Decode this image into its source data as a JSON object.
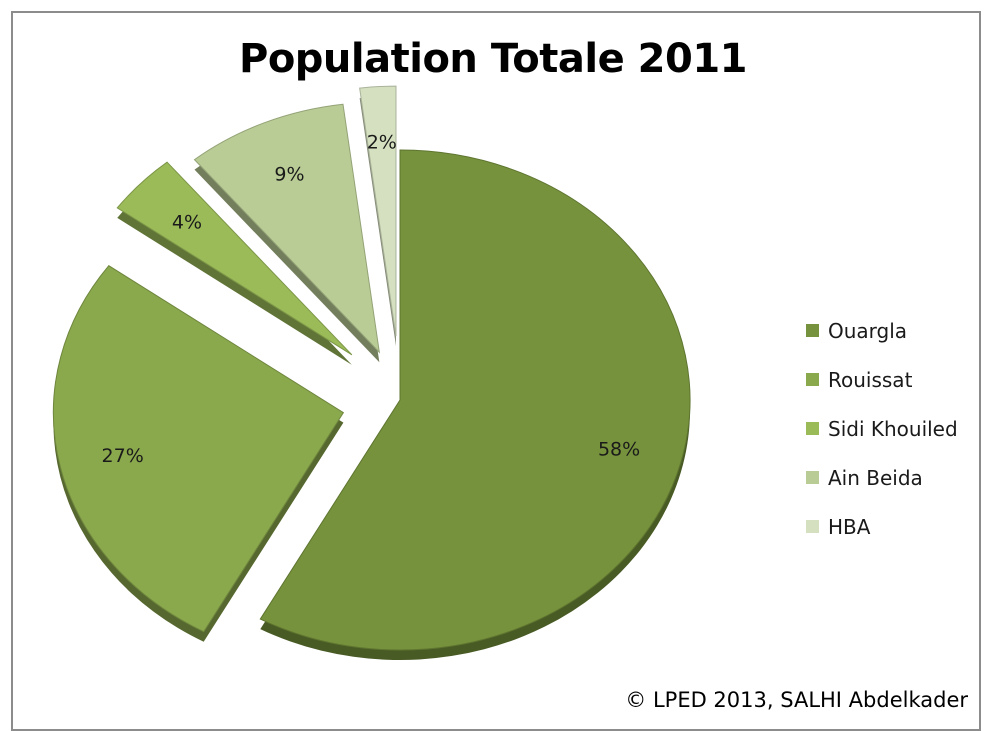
{
  "chart_data": {
    "type": "pie",
    "title": "Population Totale 2011",
    "labels": [
      "Ouargla",
      "Rouissat",
      "Sidi Khouiled",
      "Ain Beida",
      "HBA"
    ],
    "values": [
      58,
      27,
      4,
      9,
      2
    ],
    "value_labels": [
      "58%",
      "27%",
      "4%",
      "9%",
      "2%"
    ],
    "colors": [
      "#76923c",
      "#8aa84c",
      "#9bbb59",
      "#b9cc95",
      "#d5e0c0"
    ],
    "exploded": true,
    "three_d": true,
    "legend_position": "right"
  },
  "footer": {
    "copyright": "© LPED 2013, SALHI Abdelkader"
  }
}
